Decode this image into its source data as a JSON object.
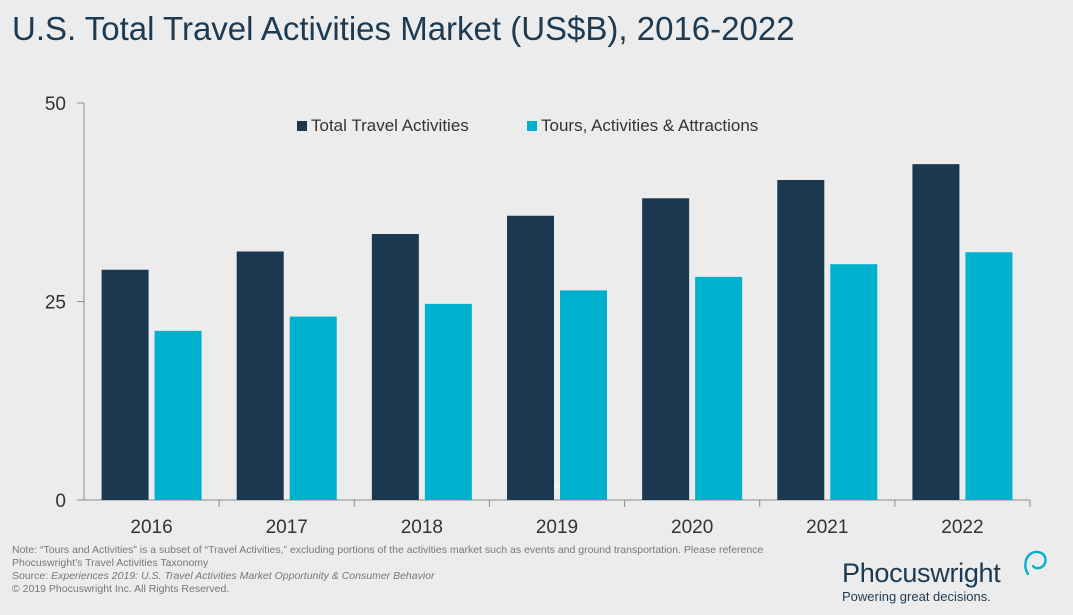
{
  "title": "U.S. Total Travel Activities Market (US$B), 2016-2022",
  "colors": {
    "total": "#1b3850",
    "tours": "#00b1cd",
    "axis": "#8c8c8c",
    "text": "#333333"
  },
  "chart_data": {
    "type": "bar",
    "categories": [
      "2016",
      "2017",
      "2018",
      "2019",
      "2020",
      "2021",
      "2022"
    ],
    "series": [
      {
        "name": "Total Travel Activities",
        "values": [
          29.0,
          31.3,
          33.5,
          35.8,
          38.0,
          40.3,
          42.3
        ]
      },
      {
        "name": "Tours, Activities & Attractions",
        "values": [
          21.3,
          23.1,
          24.7,
          26.4,
          28.1,
          29.7,
          31.2
        ]
      }
    ],
    "ylim": [
      0,
      50
    ],
    "yticks": [
      "0",
      "25",
      "50"
    ],
    "legend_position": "top-center",
    "grid": false,
    "watermark": "Phocuswright"
  },
  "footnotes": {
    "note": "Note: “Tours and Activities” is a subset of “Travel Activities,” excluding portions of the activities market such as events and ground transportation. Please reference Phocuswright’s Travel Activities Taxonomy",
    "source_label": "Source:",
    "source_text": "Experiences 2019: U.S. Travel Activities Market Opportunity & Consumer Behavior",
    "copyright": "© 2019  Phocuswright Inc. All Rights Reserved."
  },
  "logo": {
    "name": "Phocuswright",
    "tagline": "Powering great decisions."
  }
}
